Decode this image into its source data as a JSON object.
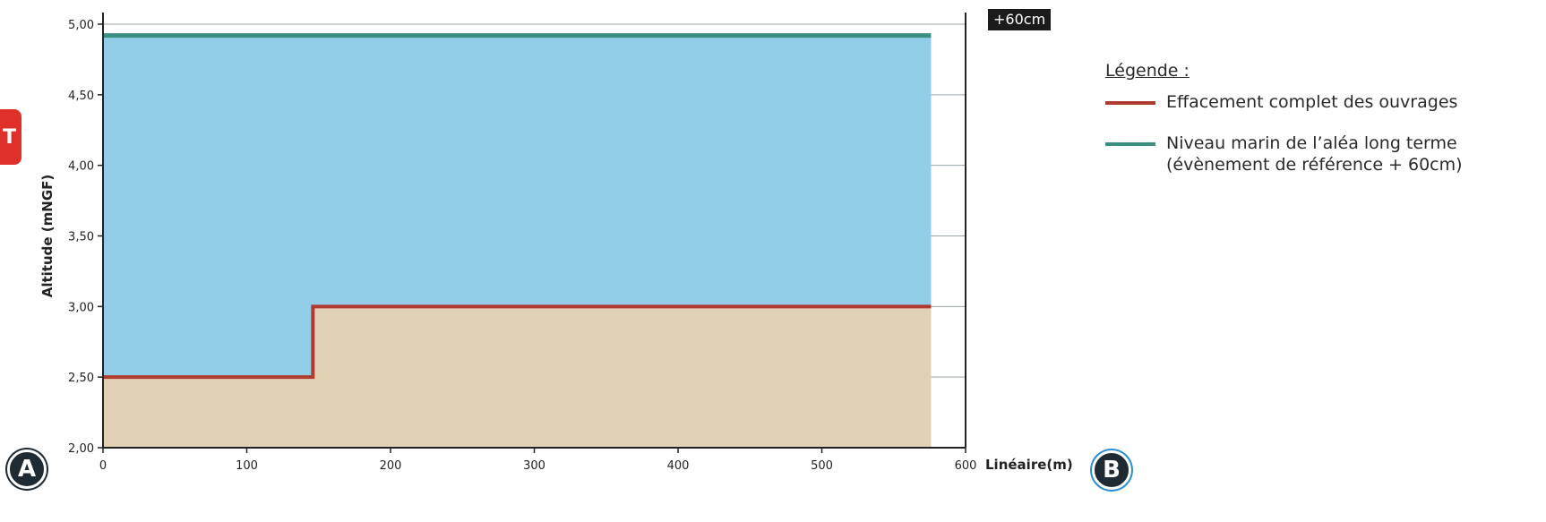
{
  "chart_data": {
    "type": "area",
    "ylabel": "Altitude (mNGF)",
    "xlabel": "Linéaire(m)",
    "xlim": [
      0,
      600
    ],
    "ylim": [
      2.0,
      5.0
    ],
    "x_ticks": [
      0,
      100,
      200,
      300,
      400,
      500,
      600
    ],
    "y_ticks": [
      "2,00",
      "2,50",
      "3,00",
      "3,50",
      "4,00",
      "4,50",
      "5,00"
    ],
    "y_tick_values": [
      2.0,
      2.5,
      3.0,
      3.5,
      4.0,
      4.5,
      5.0
    ],
    "grid": true,
    "series": [
      {
        "name": "Effacement complet des ouvrages",
        "color": "#b03a2e",
        "points": [
          [
            0,
            2.5
          ],
          [
            146,
            2.5
          ],
          [
            146,
            3.0
          ],
          [
            576,
            3.0
          ]
        ]
      },
      {
        "name": "Niveau marin de l’aléa long terme (évènement de référence + 60cm)",
        "color": "#3a8f80",
        "points": [
          [
            0,
            4.92
          ],
          [
            576,
            4.92
          ]
        ]
      }
    ],
    "water_fill": "#92cde8",
    "ground_fill": "#e2d2b5",
    "annotation": "+60cm",
    "legend_title": "Légende :",
    "legend_position": "right",
    "markers": [
      "A",
      "B"
    ]
  },
  "side_tab_label": "T"
}
